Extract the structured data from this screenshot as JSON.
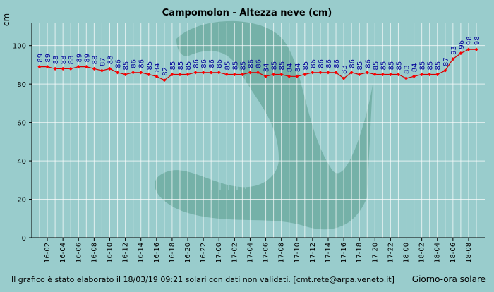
{
  "chart_data": {
    "type": "line",
    "title": "Campomolon - Altezza neve (cm)",
    "ylabel": "cm",
    "xlabel": "Giorno-ora solare",
    "ylim": [
      0,
      112
    ],
    "yticks": [
      0,
      20,
      40,
      60,
      80,
      100
    ],
    "grid": true,
    "legend": "none",
    "footer": "Il grafico è stato elaborato il 18/03/19 09:21 solari con dati non validati. [cmt.rete@arpa.veneto.it]",
    "x_tick_labels": [
      "16-02",
      "16-04",
      "16-06",
      "16-08",
      "16-10",
      "16-12",
      "16-14",
      "16-16",
      "16-18",
      "16-20",
      "16-22",
      "17-00",
      "17-02",
      "17-04",
      "17-06",
      "17-08",
      "17-10",
      "17-12",
      "17-14",
      "17-16",
      "17-18",
      "17-20",
      "17-22",
      "18-00",
      "18-02",
      "18-04",
      "18-06",
      "18-08"
    ],
    "series": [
      {
        "values": [
          89,
          89,
          88,
          88,
          88,
          89,
          89,
          88,
          87,
          88,
          86,
          85,
          86,
          86,
          85,
          84,
          82,
          85,
          85,
          85,
          86,
          86,
          86,
          86,
          85,
          85,
          85,
          86,
          86,
          84,
          85,
          85,
          84,
          84,
          85,
          86,
          86,
          86,
          86,
          83,
          86,
          85,
          86,
          85,
          85,
          85,
          85,
          83,
          84,
          85,
          85,
          85,
          87,
          93,
          96,
          98,
          98
        ]
      }
    ],
    "colors": {
      "line": "#cc0000",
      "marker": "#ff0000",
      "label": "#000099",
      "grid": "#ffffff",
      "background": "#99cccc",
      "watermark": "#6aa89c"
    }
  }
}
